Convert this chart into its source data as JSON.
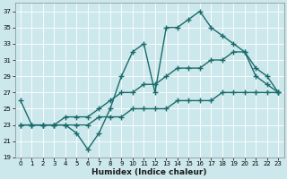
{
  "xlabel": "Humidex (Indice chaleur)",
  "bg_color": "#cce8ec",
  "grid_color": "#b0d4d8",
  "line_color": "#1a6b6b",
  "xlim": [
    -0.5,
    23.5
  ],
  "ylim": [
    19,
    38
  ],
  "yticks": [
    19,
    21,
    23,
    25,
    27,
    29,
    31,
    33,
    35,
    37
  ],
  "xticks": [
    0,
    1,
    2,
    3,
    4,
    5,
    6,
    7,
    8,
    9,
    10,
    11,
    12,
    13,
    14,
    15,
    16,
    17,
    18,
    19,
    20,
    21,
    22,
    23
  ],
  "series1_x": [
    0,
    1,
    2,
    3,
    4,
    5,
    6,
    7,
    8,
    9,
    10,
    11,
    12,
    13,
    14,
    15,
    16,
    17,
    18,
    19,
    20,
    21,
    22,
    23
  ],
  "series1_y": [
    26,
    23,
    23,
    23,
    23,
    22,
    20,
    22,
    25,
    29,
    32,
    33,
    27,
    35,
    35,
    36,
    37,
    35,
    34,
    33,
    32,
    29,
    28,
    27
  ],
  "series2_x": [
    0,
    1,
    2,
    3,
    4,
    5,
    6,
    7,
    8,
    9,
    10,
    11,
    12,
    13,
    14,
    15,
    16,
    17,
    18,
    19,
    20,
    21,
    22,
    23
  ],
  "series2_y": [
    23,
    23,
    23,
    23,
    24,
    24,
    24,
    25,
    26,
    27,
    27,
    28,
    28,
    29,
    30,
    30,
    30,
    31,
    31,
    32,
    32,
    30,
    29,
    27
  ],
  "series3_x": [
    0,
    1,
    2,
    3,
    4,
    5,
    6,
    7,
    8,
    9,
    10,
    11,
    12,
    13,
    14,
    15,
    16,
    17,
    18,
    19,
    20,
    21,
    22,
    23
  ],
  "series3_y": [
    23,
    23,
    23,
    23,
    23,
    23,
    23,
    24,
    24,
    24,
    25,
    25,
    25,
    25,
    26,
    26,
    26,
    26,
    27,
    27,
    27,
    27,
    27,
    27
  ],
  "marker": "+",
  "markersize": 4,
  "linewidth": 1.0
}
